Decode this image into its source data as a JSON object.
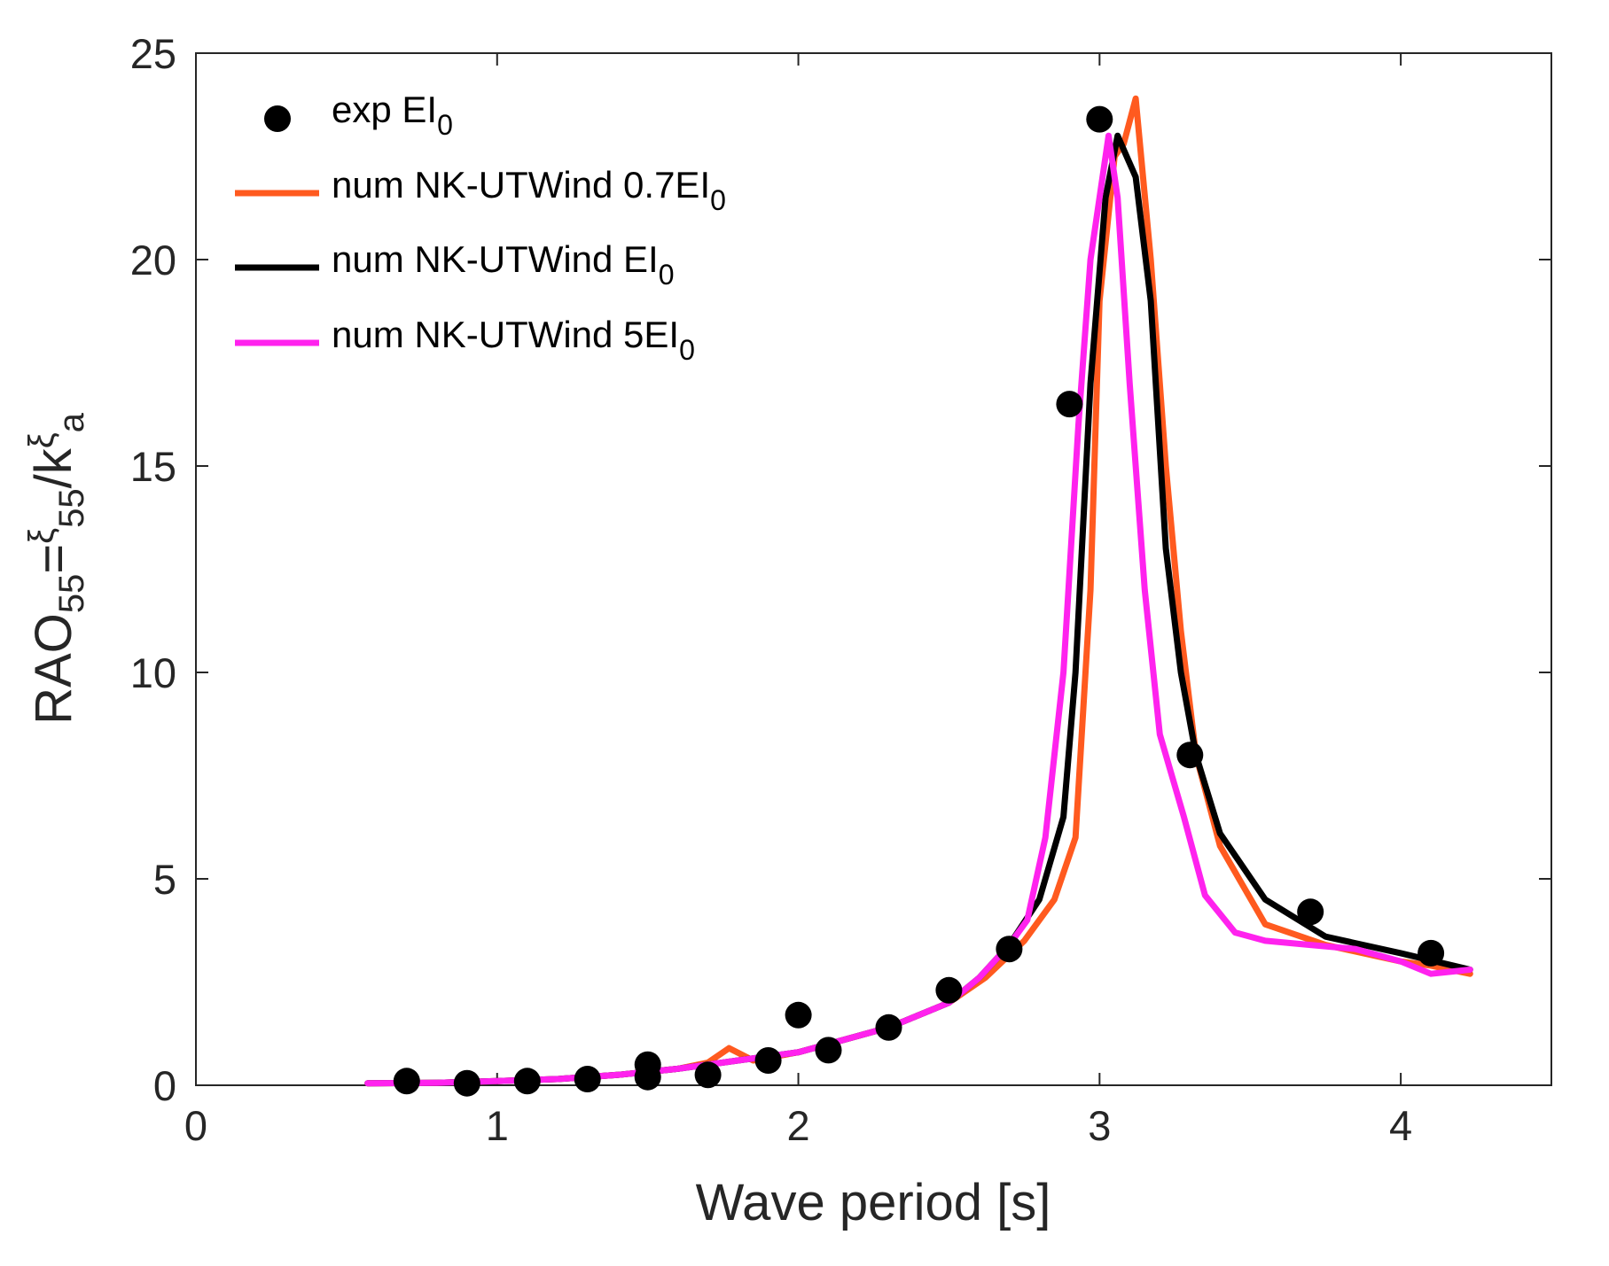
{
  "chart_data": {
    "type": "line",
    "xlabel": "Wave period [s]",
    "ylabel": "RAO55=ξ55/kξa",
    "ylabel_parts": {
      "main": "RAO",
      "main_sub": "55",
      "eq": "=",
      "xi1": "ξ",
      "xi1_sub": "55",
      "slash_k": "/k",
      "xi2": "ξ",
      "xi2_sub": "a"
    },
    "xlim": [
      0,
      4.5
    ],
    "ylim": [
      0,
      25
    ],
    "x_ticks": [
      0,
      1,
      2,
      3,
      4
    ],
    "y_ticks": [
      0,
      5,
      10,
      15,
      20,
      25
    ],
    "grid": false,
    "legend_position": "top-left",
    "legend": [
      {
        "text": "exp EI",
        "sub": "0"
      },
      {
        "text": "num NK-UTWind  0.7EI",
        "sub": "0"
      },
      {
        "text": "num NK-UTWind  EI",
        "sub": "0"
      },
      {
        "text": "num NK-UTWind  5EI",
        "sub": "0"
      }
    ],
    "series": [
      {
        "kind": "scatter",
        "color": "#000000",
        "x": [
          0.7,
          0.9,
          1.1,
          1.3,
          1.5,
          1.5,
          1.7,
          1.9,
          2.0,
          2.1,
          2.3,
          2.5,
          2.7,
          2.9,
          3.0,
          3.3,
          3.7,
          4.1
        ],
        "y": [
          0.1,
          0.05,
          0.1,
          0.15,
          0.2,
          0.5,
          0.25,
          0.6,
          1.7,
          0.85,
          1.4,
          2.3,
          3.3,
          16.5,
          23.4,
          8.0,
          4.2,
          3.2
        ]
      },
      {
        "kind": "line",
        "color": "#ff5a1f",
        "x": [
          0.57,
          0.8,
          1.0,
          1.2,
          1.4,
          1.6,
          1.7,
          1.77,
          1.85,
          2.0,
          2.2,
          2.3,
          2.5,
          2.62,
          2.75,
          2.85,
          2.92,
          2.97,
          3.0,
          3.05,
          3.08,
          3.12,
          3.17,
          3.22,
          3.27,
          3.32,
          3.4,
          3.55,
          3.75,
          4.0,
          4.1,
          4.23
        ],
        "y": [
          0.05,
          0.06,
          0.1,
          0.15,
          0.25,
          0.4,
          0.55,
          0.9,
          0.6,
          0.8,
          1.2,
          1.4,
          2.0,
          2.6,
          3.5,
          4.5,
          6.0,
          12.0,
          19.0,
          22.5,
          22.8,
          23.9,
          20.0,
          15.0,
          11.0,
          8.0,
          5.8,
          3.9,
          3.4,
          3.0,
          2.9,
          2.7
        ]
      },
      {
        "kind": "line",
        "color": "#000000",
        "x": [
          0.57,
          0.8,
          1.0,
          1.2,
          1.4,
          1.6,
          1.8,
          2.0,
          2.2,
          2.3,
          2.5,
          2.6,
          2.7,
          2.8,
          2.88,
          2.92,
          2.97,
          3.02,
          3.06,
          3.12,
          3.17,
          3.22,
          3.27,
          3.32,
          3.4,
          3.55,
          3.75,
          4.0,
          4.23
        ],
        "y": [
          0.05,
          0.06,
          0.1,
          0.15,
          0.25,
          0.4,
          0.6,
          0.8,
          1.2,
          1.4,
          2.0,
          2.6,
          3.4,
          4.5,
          6.5,
          10.0,
          17.0,
          21.5,
          23.0,
          22.0,
          19.0,
          13.0,
          10.0,
          8.0,
          6.1,
          4.5,
          3.6,
          3.2,
          2.8
        ]
      },
      {
        "kind": "line",
        "color": "#ff22ee",
        "x": [
          0.57,
          0.8,
          1.0,
          1.2,
          1.4,
          1.6,
          1.8,
          2.0,
          2.2,
          2.3,
          2.5,
          2.6,
          2.7,
          2.76,
          2.82,
          2.88,
          2.93,
          2.97,
          3.03,
          3.06,
          3.1,
          3.15,
          3.2,
          3.28,
          3.35,
          3.45,
          3.55,
          3.7,
          3.85,
          4.0,
          4.1,
          4.23
        ],
        "y": [
          0.05,
          0.06,
          0.1,
          0.15,
          0.25,
          0.4,
          0.6,
          0.8,
          1.2,
          1.4,
          2.0,
          2.6,
          3.4,
          4.0,
          6.0,
          10.0,
          16.0,
          20.0,
          23.0,
          21.5,
          17.0,
          12.0,
          8.5,
          6.5,
          4.6,
          3.7,
          3.5,
          3.4,
          3.3,
          3.0,
          2.7,
          2.8
        ]
      }
    ]
  }
}
